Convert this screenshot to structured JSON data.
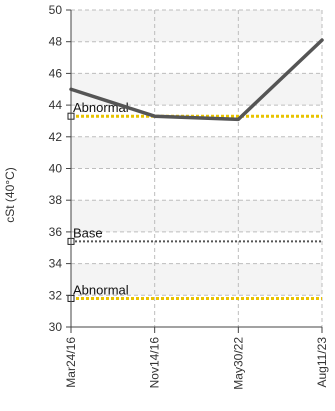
{
  "chart_data": {
    "type": "line",
    "ylabel": "cSt (40°C)",
    "ylim": [
      30,
      50
    ],
    "yticks": [
      30,
      32,
      34,
      36,
      38,
      40,
      42,
      44,
      46,
      48,
      50
    ],
    "categories": [
      "Mar24/16",
      "Nov14/16",
      "May30/22",
      "Aug11/23"
    ],
    "series": [
      {
        "values": [
          45.0,
          43.3,
          43.1,
          48.1
        ]
      }
    ],
    "reference_lines": [
      {
        "label": "Abnormal",
        "value": 43.3,
        "color": "#e8c300",
        "style": "dotted"
      },
      {
        "label": "Base",
        "value": 35.4,
        "color": "#555555",
        "style": "dotted"
      },
      {
        "label": "Abnormal",
        "value": 31.8,
        "color": "#e8c300",
        "style": "dotted"
      }
    ],
    "grid": true,
    "bands": "alternating light gray",
    "colors": {
      "series": "#555555",
      "grid": "#bdbdbd",
      "band": "#f4f4f4",
      "axis": "#444444",
      "text": "#333333"
    }
  }
}
